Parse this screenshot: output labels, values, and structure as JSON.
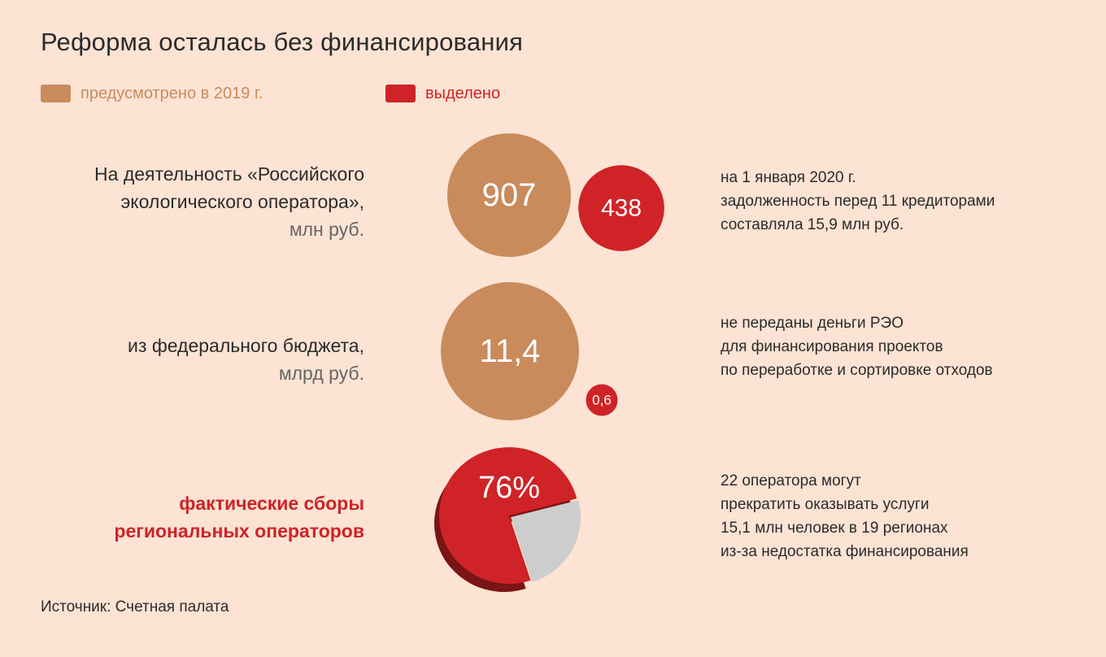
{
  "title": "Реформа осталась без финансирования",
  "legend": {
    "planned": "предусмотрено в 2019 г.",
    "allocated": "выделено"
  },
  "rows": [
    {
      "label_lines": [
        "На деятельность «Российского",
        "экологического оператора»,"
      ],
      "unit": "млн руб.",
      "note_lines": [
        "на 1 января 2020 г.",
        "задолженность перед 11 кредиторами",
        "составляла 15,9 млн руб."
      ]
    },
    {
      "label_lines": [
        "из федерального бюджета,"
      ],
      "unit": "млрд руб.",
      "note_lines": [
        "не переданы деньги РЭО",
        "для финансирования проектов",
        "по переработке и сортировке отходов"
      ]
    },
    {
      "label_lines": [
        "фактические сборы",
        "региональных операторов"
      ],
      "unit": "",
      "note_lines": [
        "22 оператора могут",
        "прекратить оказывать услуги",
        "15,1 млн человек в 19 регионах",
        "из-за недостатка финансирования"
      ]
    }
  ],
  "source": "Источник: Счетная палата",
  "colors": {
    "background": "#fce3d4",
    "planned": "#c98b5c",
    "allocated": "#cf2327",
    "remainder": "#cdcdcd",
    "pie_shadow": "#7a1416"
  },
  "chart_data": [
    {
      "type": "bubble",
      "title": "На деятельность «Российского экологического оператора», млн руб.",
      "categories": [
        "предусмотрено в 2019 г.",
        "выделено"
      ],
      "values": [
        907,
        438
      ],
      "labels": [
        "907",
        "438"
      ]
    },
    {
      "type": "bubble",
      "title": "из федерального бюджета, млрд руб.",
      "categories": [
        "предусмотрено в 2019 г.",
        "выделено"
      ],
      "values": [
        11.4,
        0.6
      ],
      "labels": [
        "11,4",
        "0,6"
      ]
    },
    {
      "type": "pie",
      "title": "фактические сборы региональных операторов",
      "slices": [
        {
          "value": 76,
          "label": "76%"
        },
        {
          "value": 24
        }
      ]
    }
  ]
}
